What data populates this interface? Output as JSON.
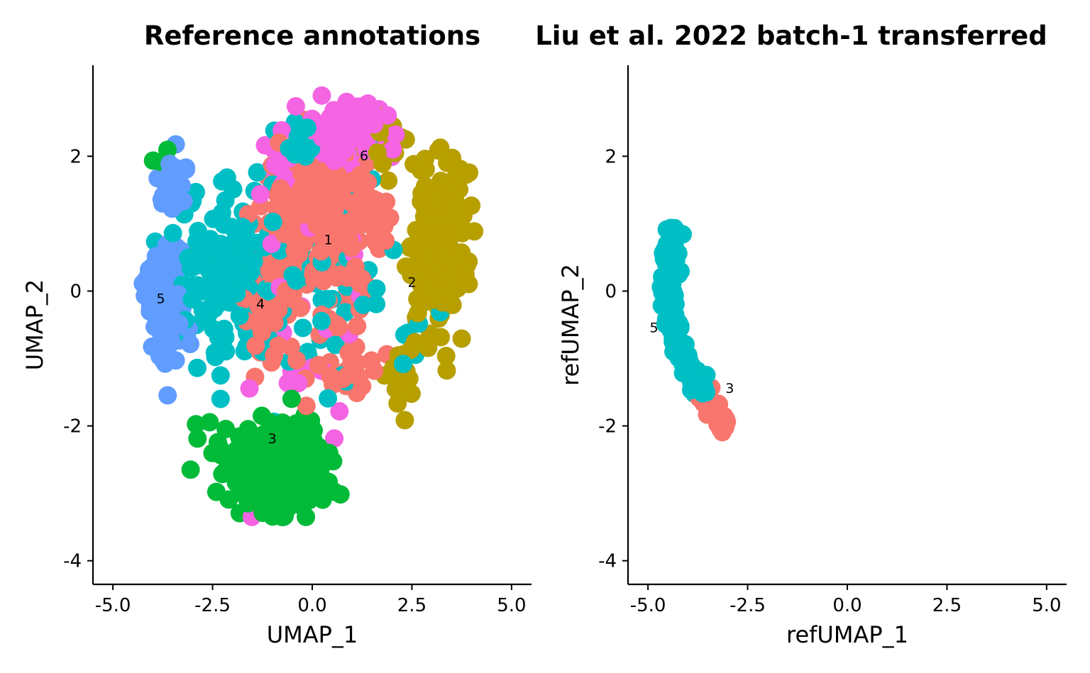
{
  "chart_data": [
    {
      "type": "scatter",
      "title": "Reference annotations",
      "xlabel": "UMAP_1",
      "ylabel": "UMAP_2",
      "xlim": [
        -5.5,
        5.5
      ],
      "ylim": [
        -4.35,
        3.35
      ],
      "xticks": [
        -5.0,
        -2.5,
        0.0,
        2.5,
        5.0
      ],
      "xtick_labels": [
        "-5.0",
        "-2.5",
        "0.0",
        "2.5",
        "5.0"
      ],
      "yticks": [
        -4,
        -2,
        0,
        2
      ],
      "ytick_labels": [
        "-4",
        "-2",
        "0",
        "2"
      ],
      "grid": false,
      "legend": "none",
      "series": [
        {
          "color": "#F8766D",
          "clusters": [
            {
              "cx": 0.2,
              "cy": 1.0,
              "sx": 1.0,
              "sy": 0.75,
              "n": 300
            },
            {
              "cx": -1.1,
              "cy": -0.3,
              "sx": 0.5,
              "sy": 0.5,
              "n": 60
            },
            {
              "cx": 0.9,
              "cy": -1.2,
              "sx": 0.6,
              "sy": 0.5,
              "n": 25
            }
          ]
        },
        {
          "color": "#B79F00",
          "clusters": [
            {
              "cx": 3.2,
              "cy": 0.7,
              "sx": 0.45,
              "sy": 0.85,
              "n": 220
            },
            {
              "cx": 1.9,
              "cy": 2.2,
              "sx": 0.35,
              "sy": 0.25,
              "n": 25
            },
            {
              "cx": 2.1,
              "cy": -1.3,
              "sx": 0.3,
              "sy": 0.4,
              "n": 15
            }
          ]
        },
        {
          "color": "#00BA38",
          "clusters": [
            {
              "cx": -0.9,
              "cy": -2.5,
              "sx": 0.9,
              "sy": 0.45,
              "n": 200
            },
            {
              "cx": -0.6,
              "cy": -3.05,
              "sx": 0.7,
              "sy": 0.2,
              "n": 40
            },
            {
              "cx": -3.8,
              "cy": 2.0,
              "sx": 0.15,
              "sy": 0.1,
              "n": 3
            }
          ]
        },
        {
          "color": "#00BFC4",
          "clusters": [
            {
              "cx": -2.1,
              "cy": 0.2,
              "sx": 0.9,
              "sy": 0.8,
              "n": 140
            },
            {
              "cx": 0.3,
              "cy": 0.1,
              "sx": 1.5,
              "sy": 1.2,
              "n": 70
            },
            {
              "cx": -0.3,
              "cy": 2.2,
              "sx": 0.6,
              "sy": 0.25,
              "n": 15
            }
          ]
        },
        {
          "color": "#619CFF",
          "clusters": [
            {
              "cx": -3.7,
              "cy": -0.1,
              "sx": 0.35,
              "sy": 0.6,
              "n": 130
            },
            {
              "cx": -3.5,
              "cy": 1.6,
              "sx": 0.25,
              "sy": 0.3,
              "n": 30
            }
          ]
        },
        {
          "color": "#F564E3",
          "clusters": [
            {
              "cx": 1.0,
              "cy": 2.3,
              "sx": 0.7,
              "sy": 0.35,
              "n": 90
            },
            {
              "cx": -0.8,
              "cy": 1.9,
              "sx": 0.5,
              "sy": 0.3,
              "n": 20
            },
            {
              "cx": 0.0,
              "cy": -0.5,
              "sx": 1.4,
              "sy": 1.5,
              "n": 25
            }
          ]
        }
      ],
      "cluster_labels": [
        {
          "text": "1",
          "x": 0.4,
          "y": 0.75
        },
        {
          "text": "2",
          "x": 2.5,
          "y": 0.12
        },
        {
          "text": "3",
          "x": -1.0,
          "y": -2.2
        },
        {
          "text": "4",
          "x": -1.3,
          "y": -0.2
        },
        {
          "text": "5",
          "x": -3.8,
          "y": -0.12
        },
        {
          "text": "6",
          "x": 1.3,
          "y": 2.0
        }
      ]
    },
    {
      "type": "scatter",
      "title": "Liu et al. 2022 batch-1 transferred",
      "xlabel": "refUMAP_1",
      "ylabel": "refUMAP_2",
      "xlim": [
        -5.5,
        5.5
      ],
      "ylim": [
        -4.35,
        3.35
      ],
      "xticks": [
        -5.0,
        -2.5,
        0.0,
        2.5,
        5.0
      ],
      "xtick_labels": [
        "-5.0",
        "-2.5",
        "0.0",
        "2.5",
        "5.0"
      ],
      "yticks": [
        -4,
        -2,
        0,
        2
      ],
      "ytick_labels": [
        "-4",
        "-2",
        "0",
        "2"
      ],
      "grid": false,
      "legend": "none",
      "series": [
        {
          "color": "#00BFC4",
          "curve": {
            "t_from": 0.0,
            "t_to": 0.86,
            "n": 170,
            "spread": 0.1
          },
          "path": [
            [
              -4.25,
              1.0
            ],
            [
              -4.75,
              0.0
            ],
            [
              -4.45,
              -1.0
            ],
            [
              -3.05,
              -2.0
            ]
          ]
        },
        {
          "color": "#F8766D",
          "curve": {
            "t_from": 0.84,
            "t_to": 1.0,
            "n": 45,
            "spread": 0.11
          },
          "path": [
            [
              -4.25,
              1.0
            ],
            [
              -4.75,
              0.0
            ],
            [
              -4.45,
              -1.0
            ],
            [
              -3.05,
              -2.0
            ]
          ]
        }
      ],
      "cluster_labels": [
        {
          "text": "5",
          "x": -4.85,
          "y": -0.55
        },
        {
          "text": "3",
          "x": -2.95,
          "y": -1.45
        }
      ]
    }
  ]
}
